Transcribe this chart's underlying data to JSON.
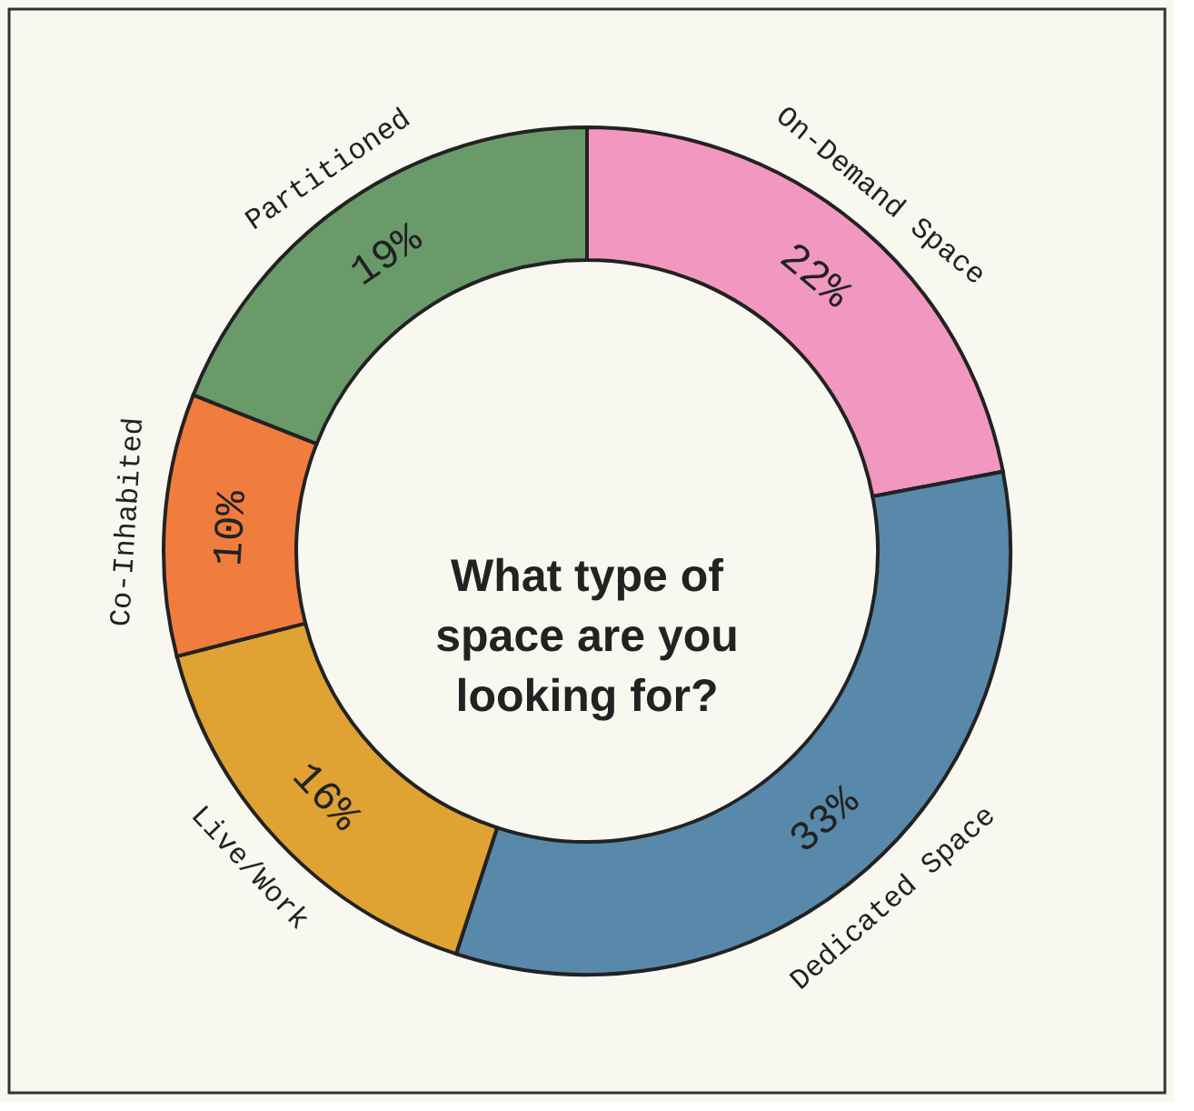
{
  "chart_data": {
    "type": "donut",
    "title": "What type of\nspace are you\nlooking for?",
    "categories": [
      "On-Demand Space",
      "Dedicated Space",
      "Live/Work",
      "Co-Inhabited",
      "Partitioned"
    ],
    "values": [
      22,
      33,
      16,
      10,
      19
    ],
    "colors": [
      "#f297c0",
      "#5889aa",
      "#e0a232",
      "#f07c3e",
      "#6a9a6a"
    ],
    "value_labels": [
      "22%",
      "33%",
      "16%",
      "10%",
      "19%"
    ],
    "legend": false
  }
}
